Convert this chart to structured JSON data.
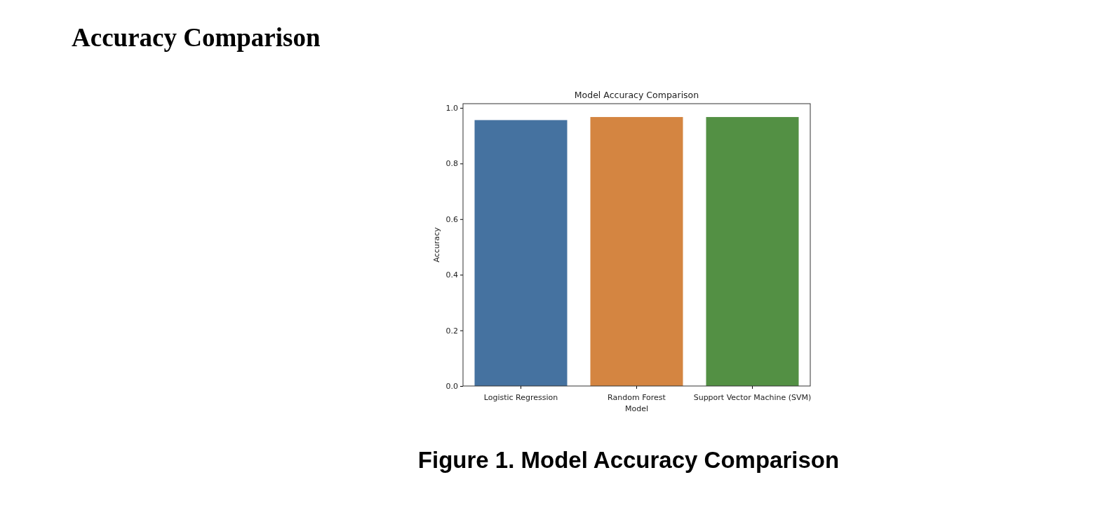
{
  "chart_data": {
    "type": "bar",
    "title": "Model Accuracy Comparison",
    "xlabel": "Model",
    "ylabel": "Accuracy",
    "categories": [
      "Logistic Regression",
      "Random Forest",
      "Support Vector Machine (SVM)"
    ],
    "values": [
      0.956,
      0.967,
      0.967
    ],
    "colors": [
      "#4572a0",
      "#d48541",
      "#539044"
    ],
    "ylim": [
      0,
      1.015
    ],
    "yticks": [
      {
        "value": 0,
        "label": "0.0"
      },
      {
        "value": 0.2,
        "label": "0.2"
      },
      {
        "value": 0.4,
        "label": "0.4"
      },
      {
        "value": 0.6,
        "label": "0.6"
      },
      {
        "value": 0.8,
        "label": "0.8"
      },
      {
        "value": 1,
        "label": "1.0"
      }
    ],
    "annotations": [
      "Accuracy Comparison",
      "Figure 1. Model Accuracy Comparison"
    ]
  }
}
